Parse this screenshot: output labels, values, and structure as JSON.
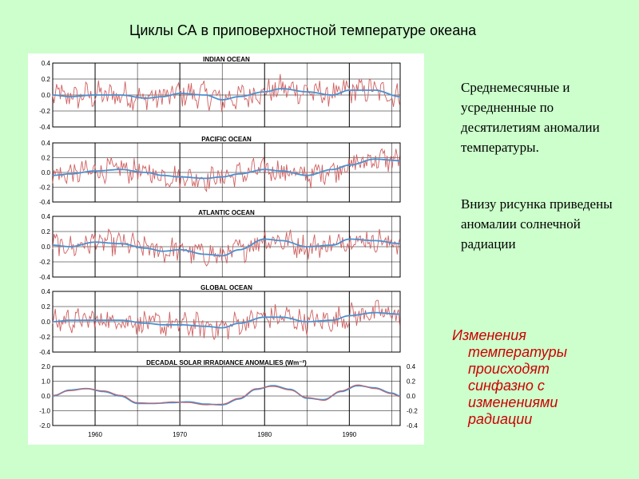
{
  "page": {
    "title": "Циклы СА в приповерхностной  температуре  океана",
    "description_1": "Среднемесячные и усредненные по десятилетиям аномалии температуры.",
    "description_2": "Внизу рисунка приведены аномалии солнечной радиации",
    "note_lines": [
      "Изменения",
      "температуры",
      "происходят",
      "синфазно  с",
      "изменениями",
      "радиации"
    ]
  },
  "colors": {
    "background": "#ccffcc",
    "monthly_series": "#d06060",
    "decadal_series": "#4a90d0",
    "note_text": "#cc0000"
  },
  "chart_data": [
    {
      "type": "line",
      "title": "INDIAN OCEAN",
      "x_range": [
        1955,
        1996
      ],
      "ylim": [
        -0.4,
        0.4
      ],
      "y_ticks": [
        "0.4",
        "0.2",
        "0.0",
        "-0.2",
        "-0.4"
      ],
      "x_gridlines": [
        1960,
        1965,
        1970,
        1975,
        1980,
        1985,
        1990,
        1995
      ],
      "series": [
        {
          "x": [
            1955,
            1957,
            1960,
            1963,
            1966,
            1968,
            1970,
            1973,
            1975,
            1977,
            1980,
            1982,
            1985,
            1988,
            1990,
            1993,
            1996
          ],
          "values": [
            0.0,
            -0.02,
            0.0,
            0.0,
            -0.04,
            -0.02,
            0.02,
            0.0,
            -0.06,
            -0.02,
            0.04,
            0.08,
            0.04,
            0.0,
            0.06,
            0.06,
            -0.02
          ]
        }
      ]
    },
    {
      "type": "line",
      "title": "PACIFIC OCEAN",
      "x_range": [
        1955,
        1996
      ],
      "ylim": [
        -0.4,
        0.4
      ],
      "y_ticks": [
        "0.4",
        "0.2",
        "0.0",
        "-0.2",
        "-0.4"
      ],
      "x_gridlines": [
        1960,
        1965,
        1970,
        1975,
        1980,
        1985,
        1990,
        1995
      ],
      "series": [
        {
          "x": [
            1955,
            1957,
            1960,
            1963,
            1966,
            1968,
            1970,
            1973,
            1975,
            1977,
            1980,
            1982,
            1985,
            1988,
            1990,
            1993,
            1996
          ],
          "values": [
            -0.04,
            -0.02,
            0.02,
            0.04,
            0.0,
            -0.04,
            -0.06,
            -0.08,
            -0.06,
            -0.02,
            0.04,
            0.02,
            -0.04,
            0.04,
            0.1,
            0.18,
            0.16
          ]
        }
      ]
    },
    {
      "type": "line",
      "title": "ATLANTIC OCEAN",
      "x_range": [
        1955,
        1996
      ],
      "ylim": [
        -0.4,
        0.4
      ],
      "y_ticks": [
        "0.4",
        "0.2",
        "0.0",
        "-0.2",
        "-0.4"
      ],
      "x_gridlines": [
        1960,
        1965,
        1970,
        1975,
        1980,
        1985,
        1990,
        1995
      ],
      "series": [
        {
          "x": [
            1955,
            1957,
            1960,
            1963,
            1966,
            1968,
            1970,
            1973,
            1975,
            1977,
            1980,
            1982,
            1985,
            1988,
            1990,
            1993,
            1996
          ],
          "values": [
            0.02,
            0.0,
            0.06,
            0.04,
            -0.02,
            -0.06,
            -0.04,
            -0.1,
            -0.12,
            -0.04,
            0.1,
            0.08,
            0.0,
            0.02,
            0.1,
            0.08,
            0.04
          ]
        }
      ]
    },
    {
      "type": "line",
      "title": "GLOBAL OCEAN",
      "x_range": [
        1955,
        1996
      ],
      "ylim": [
        -0.4,
        0.4
      ],
      "y_ticks": [
        "0.4",
        "0.2",
        "0.0",
        "-0.2",
        "-0.4"
      ],
      "x_gridlines": [
        1960,
        1965,
        1970,
        1975,
        1980,
        1985,
        1990,
        1995
      ],
      "series": [
        {
          "x": [
            1955,
            1957,
            1960,
            1963,
            1966,
            1968,
            1970,
            1973,
            1975,
            1977,
            1980,
            1982,
            1985,
            1988,
            1990,
            1993,
            1996
          ],
          "values": [
            0.0,
            0.02,
            0.02,
            0.02,
            -0.02,
            -0.04,
            -0.04,
            -0.06,
            -0.08,
            -0.02,
            0.06,
            0.06,
            0.0,
            0.02,
            0.08,
            0.12,
            0.1
          ]
        }
      ]
    },
    {
      "type": "line",
      "title": "DECADAL SOLAR IRRADIANCE ANOMALIES (Wm⁻²)",
      "x_range": [
        1955,
        1996
      ],
      "ylim": [
        -2.0,
        2.0
      ],
      "y_ticks": [
        "2.0",
        "1.0",
        "0.0",
        "-1.0",
        "-2.0"
      ],
      "y2_ticks": [
        "0.4",
        "0.2",
        "0.0",
        "-0.2",
        "-0.4"
      ],
      "x_tick_labels": [
        "1960",
        "1970",
        "1980",
        "1990"
      ],
      "x_gridlines": [
        1960,
        1965,
        1970,
        1975,
        1980,
        1985,
        1990,
        1995
      ],
      "series": [
        {
          "x": [
            1955,
            1957,
            1959,
            1961,
            1963,
            1965,
            1967,
            1969,
            1971,
            1973,
            1975,
            1977,
            1979,
            1981,
            1983,
            1985,
            1987,
            1989,
            1991,
            1993,
            1995,
            1996
          ],
          "values": [
            0.0,
            0.4,
            0.5,
            0.3,
            0.0,
            -0.5,
            -0.5,
            -0.45,
            -0.4,
            -0.55,
            -0.6,
            -0.2,
            0.45,
            0.7,
            0.45,
            -0.15,
            -0.25,
            0.3,
            0.7,
            0.55,
            0.2,
            0.0
          ]
        },
        {
          "x": [
            1955,
            1957,
            1959,
            1961,
            1963,
            1965,
            1967,
            1969,
            1971,
            1973,
            1975,
            1977,
            1979,
            1981,
            1983,
            1985,
            1987,
            1989,
            1991,
            1993,
            1995,
            1996
          ],
          "values": [
            0.05,
            0.35,
            0.5,
            0.35,
            0.05,
            -0.45,
            -0.5,
            -0.4,
            -0.45,
            -0.6,
            -0.55,
            -0.15,
            0.5,
            0.65,
            0.4,
            -0.1,
            -0.3,
            0.35,
            0.75,
            0.5,
            0.15,
            -0.05
          ]
        }
      ]
    }
  ]
}
